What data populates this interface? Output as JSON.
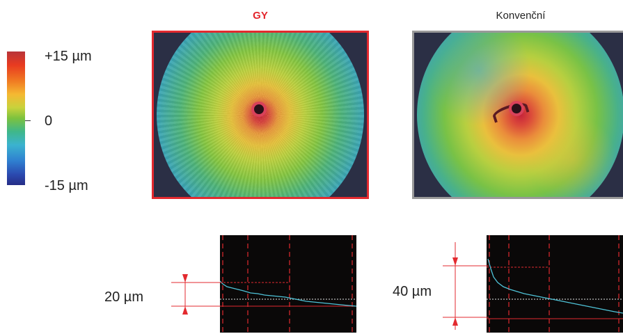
{
  "scale": {
    "max_label": "+15 µm",
    "zero_label": "0",
    "min_label": "-15 µm"
  },
  "panels": {
    "gy": {
      "title": "GY",
      "frame_color": "#e32a2f"
    },
    "conventional": {
      "title": "Konvenční",
      "frame_color": "#999999"
    }
  },
  "profiles": {
    "gy": {
      "measurement": "20 µm",
      "height_um": 20
    },
    "conventional": {
      "measurement": "40 µm",
      "height_um": 40
    }
  },
  "colors": {
    "accent": "#e3262d",
    "profile_line": "#4fc3d8",
    "guide_line": "#e32a2f"
  }
}
